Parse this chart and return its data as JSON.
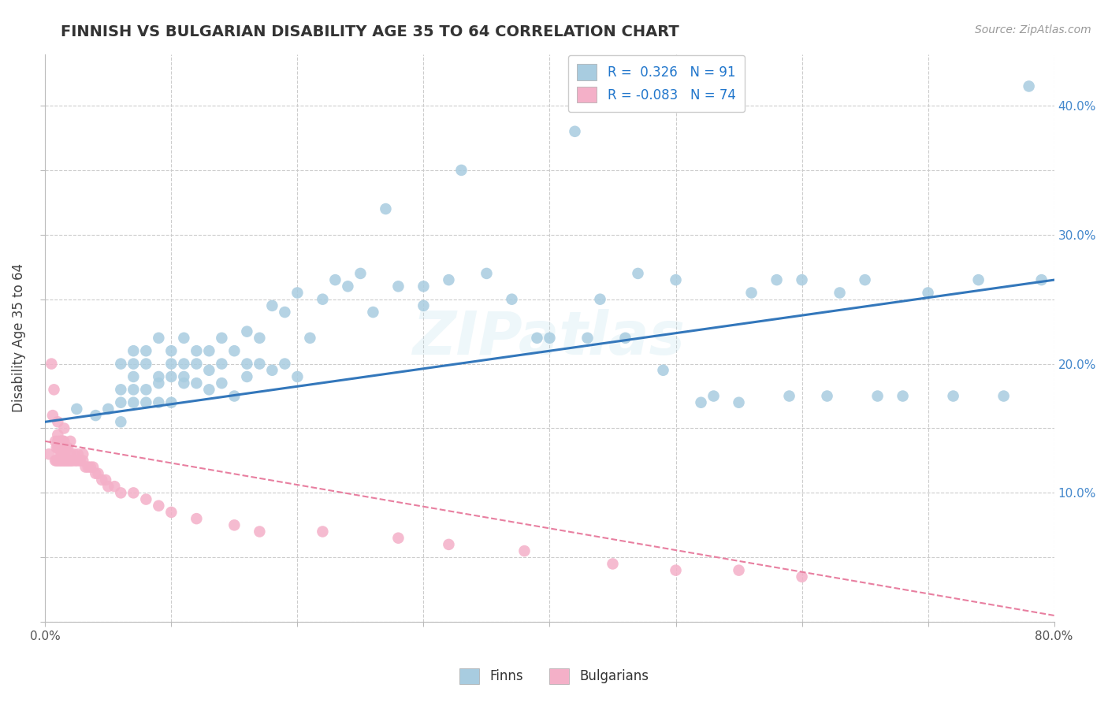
{
  "title": "FINNISH VS BULGARIAN DISABILITY AGE 35 TO 64 CORRELATION CHART",
  "source": "Source: ZipAtlas.com",
  "ylabel": "Disability Age 35 to 64",
  "xlim": [
    0.0,
    0.8
  ],
  "ylim": [
    0.0,
    0.44
  ],
  "xticks": [
    0.0,
    0.1,
    0.2,
    0.3,
    0.4,
    0.5,
    0.6,
    0.7,
    0.8
  ],
  "xtick_labels_show": [
    "0.0%",
    "",
    "",
    "",
    "",
    "",
    "",
    "",
    "80.0%"
  ],
  "yticks": [
    0.0,
    0.05,
    0.1,
    0.15,
    0.2,
    0.25,
    0.3,
    0.35,
    0.4
  ],
  "ytick_right_labels": [
    "",
    "",
    "10.0%",
    "",
    "20.0%",
    "",
    "30.0%",
    "",
    "40.0%"
  ],
  "finn_R": "0.326",
  "finn_N": 91,
  "bulg_R": "-0.083",
  "bulg_N": 74,
  "finn_scatter_color": "#a8cce0",
  "bulg_scatter_color": "#f4b0c8",
  "finn_line_color": "#3377bb",
  "bulg_line_color": "#e87fa0",
  "watermark": "ZIPatlas",
  "finn_line_x0": 0.0,
  "finn_line_y0": 0.155,
  "finn_line_x1": 0.8,
  "finn_line_y1": 0.265,
  "bulg_line_x0": 0.0,
  "bulg_line_y0": 0.14,
  "bulg_line_x1": 0.8,
  "bulg_line_y1": 0.005,
  "finn_x": [
    0.025,
    0.04,
    0.05,
    0.06,
    0.06,
    0.06,
    0.06,
    0.07,
    0.07,
    0.07,
    0.07,
    0.07,
    0.08,
    0.08,
    0.08,
    0.08,
    0.09,
    0.09,
    0.09,
    0.09,
    0.1,
    0.1,
    0.1,
    0.1,
    0.11,
    0.11,
    0.11,
    0.11,
    0.12,
    0.12,
    0.12,
    0.13,
    0.13,
    0.13,
    0.14,
    0.14,
    0.14,
    0.15,
    0.15,
    0.16,
    0.16,
    0.16,
    0.17,
    0.17,
    0.18,
    0.18,
    0.19,
    0.19,
    0.2,
    0.2,
    0.21,
    0.22,
    0.23,
    0.24,
    0.25,
    0.26,
    0.27,
    0.28,
    0.3,
    0.3,
    0.32,
    0.33,
    0.35,
    0.37,
    0.39,
    0.42,
    0.44,
    0.47,
    0.5,
    0.52,
    0.55,
    0.58,
    0.6,
    0.62,
    0.65,
    0.68,
    0.7,
    0.72,
    0.74,
    0.76,
    0.78,
    0.79,
    0.4,
    0.43,
    0.46,
    0.49,
    0.53,
    0.56,
    0.59,
    0.63,
    0.66
  ],
  "finn_y": [
    0.165,
    0.16,
    0.165,
    0.155,
    0.17,
    0.18,
    0.2,
    0.17,
    0.18,
    0.19,
    0.2,
    0.21,
    0.17,
    0.18,
    0.2,
    0.21,
    0.17,
    0.185,
    0.19,
    0.22,
    0.17,
    0.19,
    0.2,
    0.21,
    0.185,
    0.19,
    0.2,
    0.22,
    0.185,
    0.2,
    0.21,
    0.18,
    0.195,
    0.21,
    0.185,
    0.2,
    0.22,
    0.175,
    0.21,
    0.19,
    0.2,
    0.225,
    0.2,
    0.22,
    0.195,
    0.245,
    0.2,
    0.24,
    0.19,
    0.255,
    0.22,
    0.25,
    0.265,
    0.26,
    0.27,
    0.24,
    0.32,
    0.26,
    0.245,
    0.26,
    0.265,
    0.35,
    0.27,
    0.25,
    0.22,
    0.38,
    0.25,
    0.27,
    0.265,
    0.17,
    0.17,
    0.265,
    0.265,
    0.175,
    0.265,
    0.175,
    0.255,
    0.175,
    0.265,
    0.175,
    0.415,
    0.265,
    0.22,
    0.22,
    0.22,
    0.195,
    0.175,
    0.255,
    0.175,
    0.255,
    0.175
  ],
  "bulg_x": [
    0.003,
    0.005,
    0.006,
    0.007,
    0.008,
    0.008,
    0.009,
    0.009,
    0.01,
    0.01,
    0.01,
    0.01,
    0.01,
    0.011,
    0.011,
    0.012,
    0.012,
    0.012,
    0.013,
    0.013,
    0.013,
    0.014,
    0.014,
    0.014,
    0.015,
    0.015,
    0.015,
    0.015,
    0.016,
    0.016,
    0.017,
    0.017,
    0.018,
    0.018,
    0.019,
    0.02,
    0.02,
    0.02,
    0.021,
    0.022,
    0.023,
    0.024,
    0.025,
    0.026,
    0.027,
    0.028,
    0.03,
    0.03,
    0.032,
    0.034,
    0.036,
    0.038,
    0.04,
    0.042,
    0.045,
    0.048,
    0.05,
    0.055,
    0.06,
    0.07,
    0.08,
    0.09,
    0.1,
    0.12,
    0.15,
    0.17,
    0.22,
    0.28,
    0.32,
    0.38,
    0.45,
    0.5,
    0.55,
    0.6
  ],
  "bulg_y": [
    0.13,
    0.2,
    0.16,
    0.18,
    0.125,
    0.14,
    0.125,
    0.135,
    0.125,
    0.135,
    0.14,
    0.145,
    0.155,
    0.125,
    0.135,
    0.125,
    0.13,
    0.14,
    0.125,
    0.13,
    0.14,
    0.125,
    0.13,
    0.14,
    0.125,
    0.13,
    0.14,
    0.15,
    0.125,
    0.135,
    0.125,
    0.135,
    0.125,
    0.135,
    0.125,
    0.125,
    0.13,
    0.14,
    0.125,
    0.125,
    0.13,
    0.125,
    0.125,
    0.13,
    0.125,
    0.125,
    0.125,
    0.13,
    0.12,
    0.12,
    0.12,
    0.12,
    0.115,
    0.115,
    0.11,
    0.11,
    0.105,
    0.105,
    0.1,
    0.1,
    0.095,
    0.09,
    0.085,
    0.08,
    0.075,
    0.07,
    0.07,
    0.065,
    0.06,
    0.055,
    0.045,
    0.04,
    0.04,
    0.035
  ]
}
